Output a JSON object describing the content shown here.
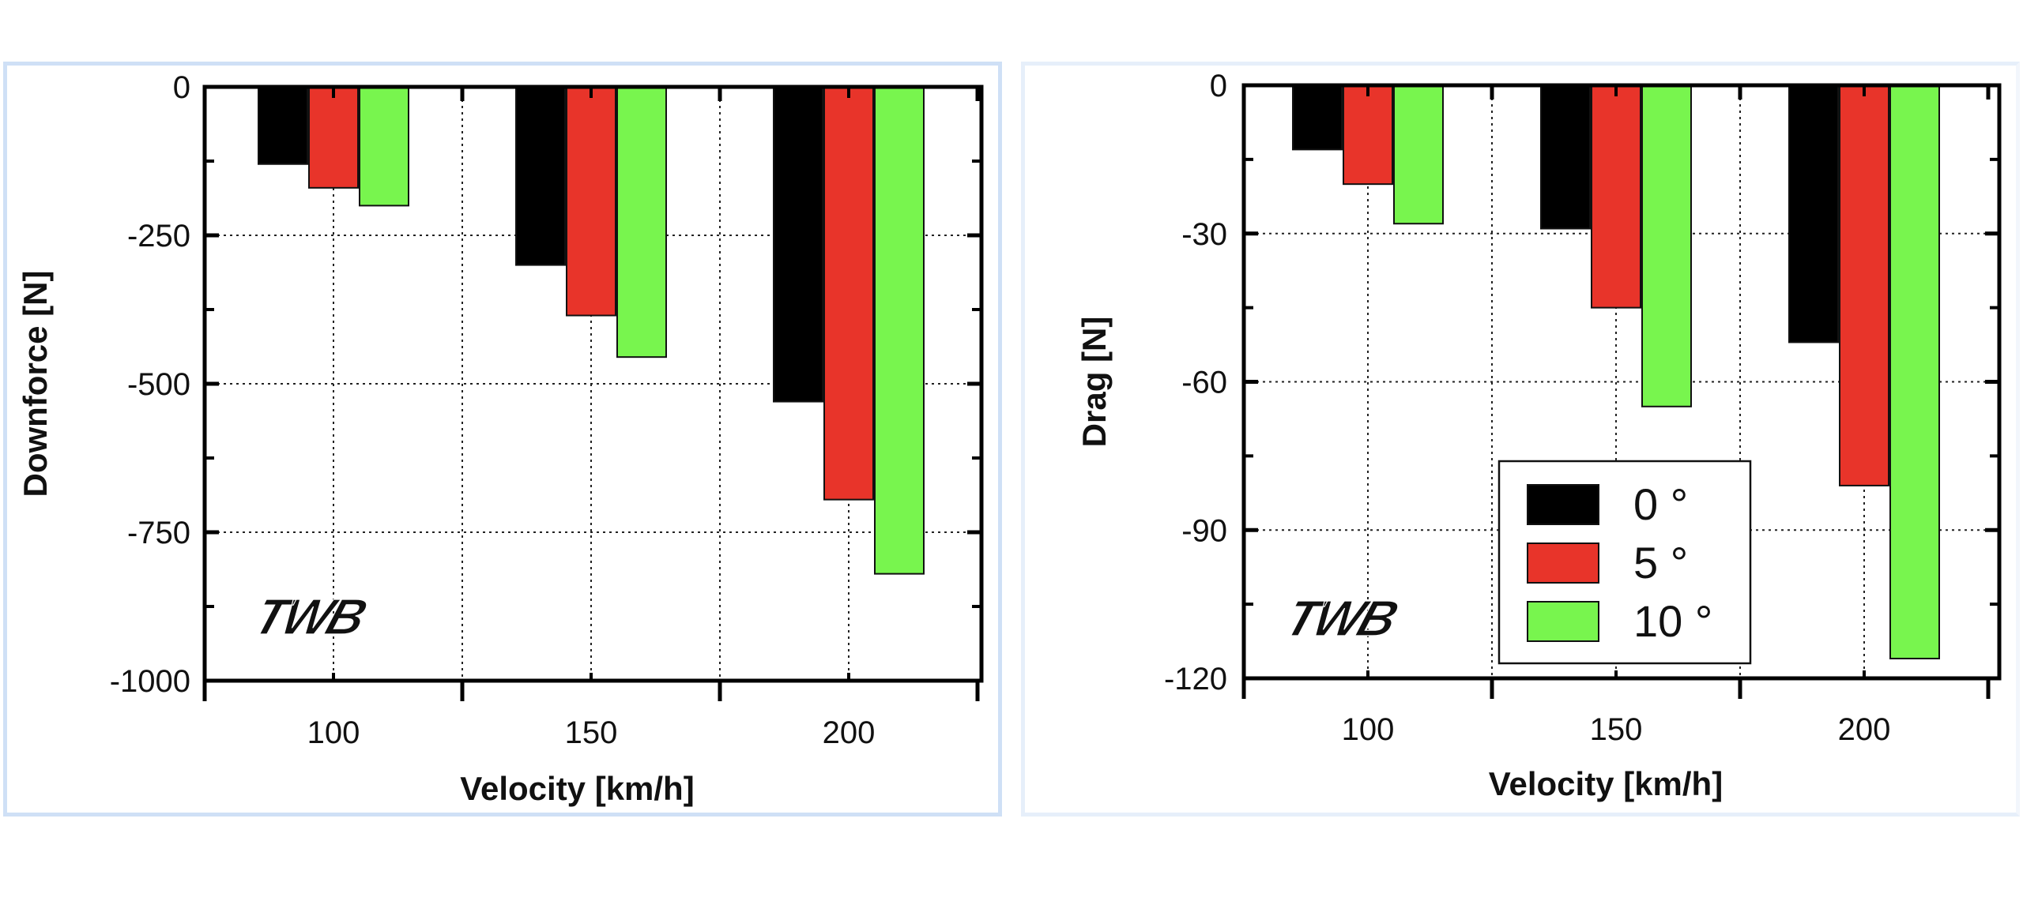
{
  "colors": {
    "series_0": "#000000",
    "series_5": "#e8342a",
    "series_10": "#78f54e"
  },
  "chart_data": [
    {
      "type": "bar",
      "title": "",
      "categories": [
        "100",
        "150",
        "200"
      ],
      "series": [
        {
          "name": "0 °",
          "values": [
            -130,
            -300,
            -530
          ]
        },
        {
          "name": "5 °",
          "values": [
            -170,
            -385,
            -695
          ]
        },
        {
          "name": "10 °",
          "values": [
            -200,
            -455,
            -820
          ]
        }
      ],
      "xlabel": "Velocity [km/h]",
      "ylabel": "Downforce [N]",
      "ylim": [
        -1000,
        0
      ],
      "yticks": [
        0,
        -250,
        -500,
        -750,
        -1000
      ],
      "ytick_labels": [
        "0",
        "-250",
        "-500",
        "-750",
        "-1000"
      ],
      "grid": true,
      "logo": "TWB"
    },
    {
      "type": "bar",
      "title": "",
      "categories": [
        "100",
        "150",
        "200"
      ],
      "series": [
        {
          "name": "0 °",
          "values": [
            -13,
            -29,
            -52
          ]
        },
        {
          "name": "5 °",
          "values": [
            -20,
            -45,
            -81
          ]
        },
        {
          "name": "10 °",
          "values": [
            -28,
            -65,
            -116
          ]
        }
      ],
      "xlabel": "Velocity [km/h]",
      "ylabel": "Drag [N]",
      "ylim": [
        -120,
        0
      ],
      "yticks": [
        0,
        -30,
        -60,
        -90,
        -120
      ],
      "ytick_labels": [
        "0",
        "-30",
        "-60",
        "-90",
        "-120"
      ],
      "grid": true,
      "legend": {
        "position": "bottom-center",
        "entries": [
          "0 °",
          "5 °",
          "10 °"
        ]
      },
      "logo": "TWB"
    }
  ]
}
